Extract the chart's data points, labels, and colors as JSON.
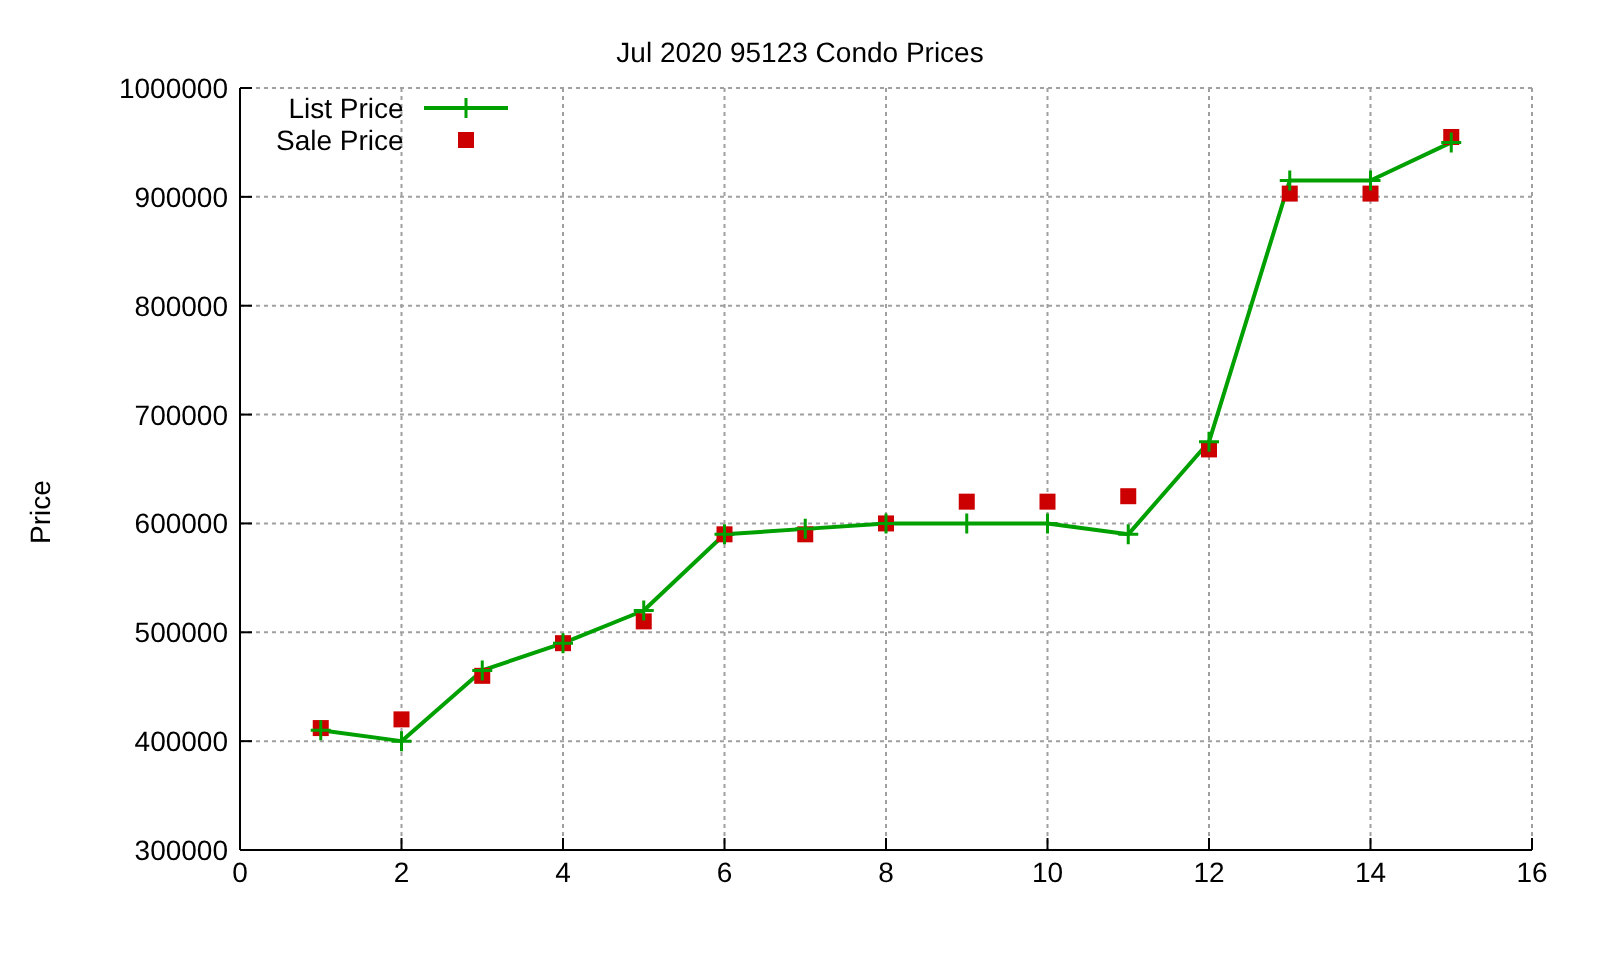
{
  "chart_data": {
    "type": "line",
    "title": "Jul 2020 95123 Condo Prices",
    "ylabel": "Price",
    "x": [
      1,
      2,
      3,
      4,
      5,
      6,
      7,
      8,
      9,
      10,
      11,
      12,
      13,
      14,
      15
    ],
    "series": [
      {
        "name": "List Price",
        "marker": "cross",
        "color": "#00a000",
        "values": [
          410000,
          400000,
          465000,
          490000,
          520000,
          590000,
          595000,
          600000,
          600000,
          600000,
          590000,
          675000,
          915000,
          915000,
          950000
        ]
      },
      {
        "name": "Sale Price",
        "type": "scatter",
        "marker": "square",
        "color": "#cc0000",
        "values": [
          412000,
          420000,
          460000,
          490000,
          510000,
          590000,
          590000,
          600000,
          620000,
          620000,
          625000,
          668000,
          903000,
          903000,
          955000
        ]
      }
    ],
    "xlim": [
      0,
      16
    ],
    "xticks": [
      0,
      2,
      4,
      6,
      8,
      10,
      12,
      14,
      16
    ],
    "ylim": [
      300000,
      1000000
    ],
    "yticks": [
      300000,
      400000,
      500000,
      600000,
      700000,
      800000,
      900000,
      1000000
    ],
    "grid": true,
    "legend": "top left"
  }
}
